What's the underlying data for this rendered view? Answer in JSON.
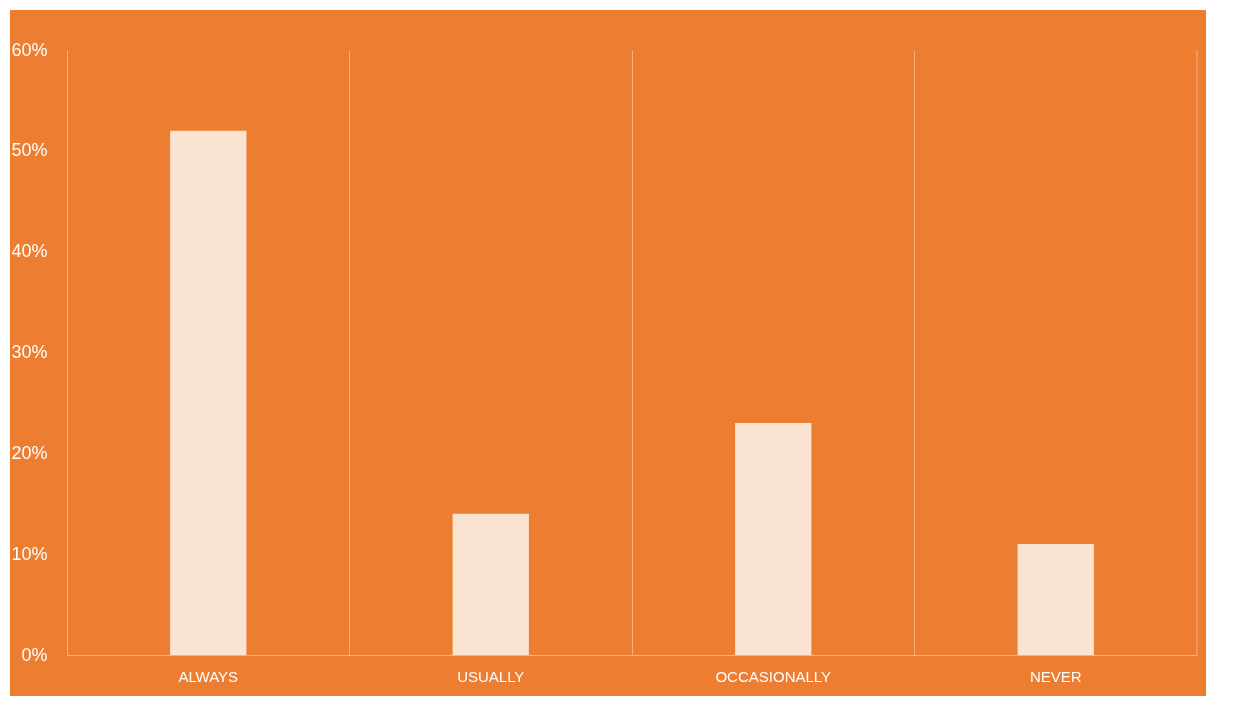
{
  "chart_data": {
    "type": "bar",
    "categories": [
      "ALWAYS",
      "USUALLY",
      "OCCASIONALLY",
      "NEVER"
    ],
    "values": [
      52,
      14,
      23,
      11
    ],
    "color": "#fbe3d2",
    "ylim": [
      0,
      60
    ],
    "yticks": [
      {
        "value": 0,
        "label": "0%"
      },
      {
        "value": 10,
        "label": "10%"
      },
      {
        "value": 20,
        "label": "20%"
      },
      {
        "value": 30,
        "label": "30%"
      },
      {
        "value": 40,
        "label": "40%"
      },
      {
        "value": 50,
        "label": "50%"
      },
      {
        "value": 60,
        "label": "60%"
      }
    ],
    "grid": "x"
  }
}
